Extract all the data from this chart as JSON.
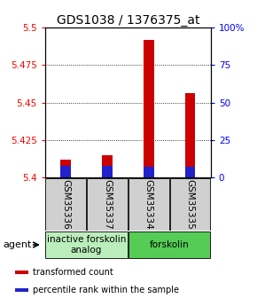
{
  "title": "GDS1038 / 1376375_at",
  "samples": [
    "GSM35336",
    "GSM35337",
    "GSM35334",
    "GSM35335"
  ],
  "red_values": [
    5.412,
    5.415,
    5.492,
    5.456
  ],
  "blue_values": [
    5.408,
    5.408,
    5.407,
    5.407
  ],
  "base": 5.4,
  "ylim_min": 5.4,
  "ylim_max": 5.5,
  "y_ticks_left": [
    5.4,
    5.425,
    5.45,
    5.475,
    5.5
  ],
  "y_ticks_right": [
    0,
    25,
    50,
    75,
    100
  ],
  "right_tick_labels": [
    "0",
    "25",
    "50",
    "75",
    "100%"
  ],
  "red_color": "#cc0000",
  "blue_color": "#2222cc",
  "agent_groups": [
    {
      "label": "inactive forskolin\nanalog",
      "cols": [
        0,
        1
      ],
      "color": "#bbeebb"
    },
    {
      "label": "forskolin",
      "cols": [
        2,
        3
      ],
      "color": "#55cc55"
    }
  ],
  "legend_items": [
    {
      "color": "#cc0000",
      "label": "transformed count"
    },
    {
      "color": "#2222cc",
      "label": "percentile rank within the sample"
    }
  ],
  "title_fontsize": 10,
  "tick_fontsize": 7.5,
  "sample_label_fontsize": 7.5,
  "agent_fontsize": 7.5,
  "legend_fontsize": 7
}
